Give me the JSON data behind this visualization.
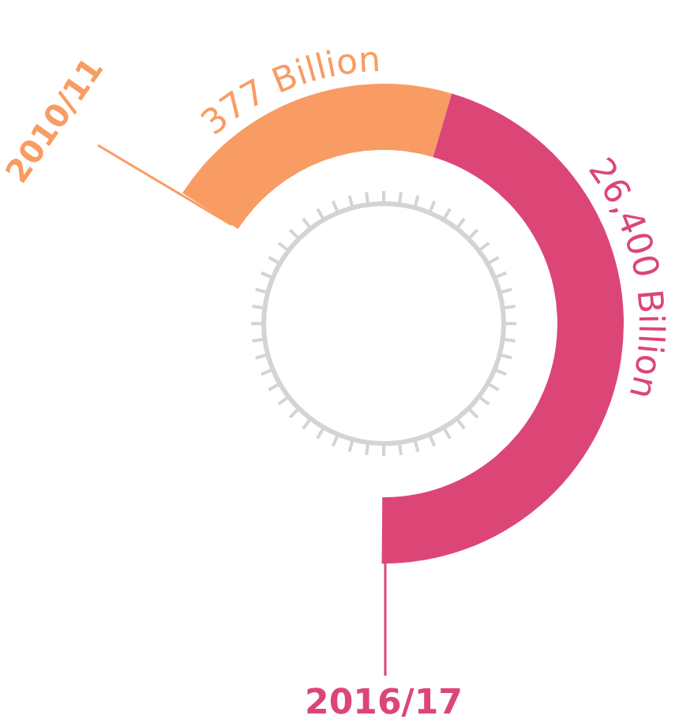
{
  "chart_data": {
    "type": "other",
    "categories": [
      "2010/11",
      "2016/17"
    ],
    "values": [
      377,
      26400
    ],
    "value_labels": [
      "377 Billion",
      "26,400 Billion"
    ],
    "colors": [
      "#f89c64",
      "#dc4677"
    ]
  }
}
